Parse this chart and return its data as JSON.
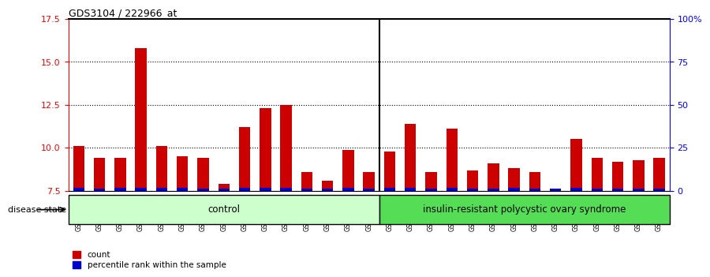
{
  "title": "GDS3104 / 222966_at",
  "samples": [
    "GSM155631",
    "GSM155643",
    "GSM155644",
    "GSM155729",
    "GSM156170",
    "GSM156171",
    "GSM156176",
    "GSM156177",
    "GSM156178",
    "GSM156179",
    "GSM156180",
    "GSM156181",
    "GSM156184",
    "GSM156186",
    "GSM156187",
    "GSM156510",
    "GSM156511",
    "GSM156512",
    "GSM156749",
    "GSM156750",
    "GSM156751",
    "GSM156752",
    "GSM156753",
    "GSM156763",
    "GSM156946",
    "GSM156948",
    "GSM156949",
    "GSM156950",
    "GSM156951"
  ],
  "count_values": [
    10.1,
    9.4,
    9.4,
    15.8,
    10.1,
    9.5,
    9.4,
    7.9,
    11.2,
    12.3,
    12.5,
    8.6,
    8.1,
    9.9,
    8.6,
    9.8,
    11.4,
    8.6,
    11.1,
    8.7,
    9.1,
    8.8,
    8.6,
    7.6,
    10.5,
    9.4,
    9.2,
    9.3,
    9.4
  ],
  "percentile_values": [
    0.18,
    0.14,
    0.17,
    0.17,
    0.17,
    0.16,
    0.15,
    0.13,
    0.17,
    0.17,
    0.18,
    0.13,
    0.13,
    0.16,
    0.13,
    0.17,
    0.16,
    0.15,
    0.17,
    0.15,
    0.15,
    0.16,
    0.13,
    0.12,
    0.16,
    0.15,
    0.14,
    0.15,
    0.15
  ],
  "ylim_left": [
    7.5,
    17.5
  ],
  "ylim_right": [
    0,
    100
  ],
  "yticks_left": [
    7.5,
    10.0,
    12.5,
    15.0,
    17.5
  ],
  "yticks_right": [
    0,
    25,
    50,
    75,
    100
  ],
  "ytick_labels_right": [
    "0",
    "25",
    "50",
    "75",
    "100%"
  ],
  "bar_color_red": "#cc0000",
  "bar_color_blue": "#0000cc",
  "control_count": 15,
  "control_label": "control",
  "disease_label": "insulin-resistant polycystic ovary syndrome",
  "disease_state_label": "disease state",
  "legend_count": "count",
  "legend_percentile": "percentile rank within the sample",
  "bg_plot": "#ffffff",
  "bg_xtick": "#d0d0d0",
  "bg_control": "#ccffcc",
  "bg_disease": "#55dd55",
  "bar_width": 0.55
}
